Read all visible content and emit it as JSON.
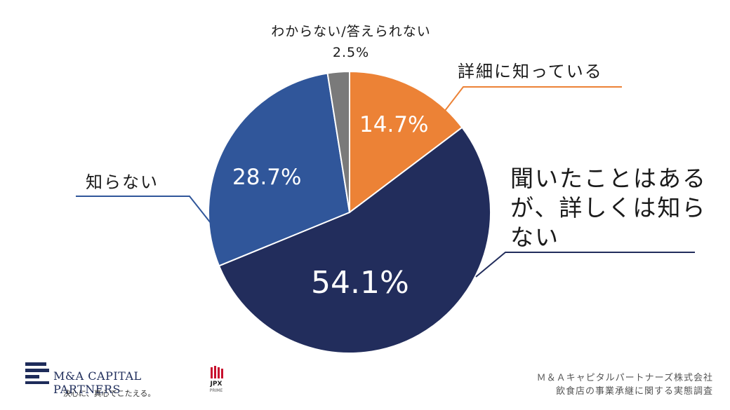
{
  "chart_data": {
    "type": "pie",
    "slices": [
      {
        "label": "詳細に知っている",
        "value": 14.7,
        "display": "14.7%",
        "color": "#ec8236"
      },
      {
        "label": "聞いたことはあるが、詳しくは知らない",
        "value": 54.1,
        "display": "54.1%",
        "color": "#222d5c"
      },
      {
        "label": "知らない",
        "value": 28.7,
        "display": "28.7%",
        "color": "#30569a"
      },
      {
        "label": "わからない/答えられない",
        "value": 2.5,
        "display": "2.5%",
        "color": "#7a7a7a"
      }
    ],
    "start": "12 o'clock, clockwise"
  },
  "footer": {
    "logo_name": "M&A CAPITAL PARTNERS",
    "logo_tagline": "決心に、真心でこたえる。",
    "jpx_label": "JPX",
    "jpx_sub": "PRIME",
    "source_line1": "Ｍ＆Ａキャピタルパートナーズ株式会社",
    "source_line2": "飲食店の事業承継に関する実態調査"
  }
}
